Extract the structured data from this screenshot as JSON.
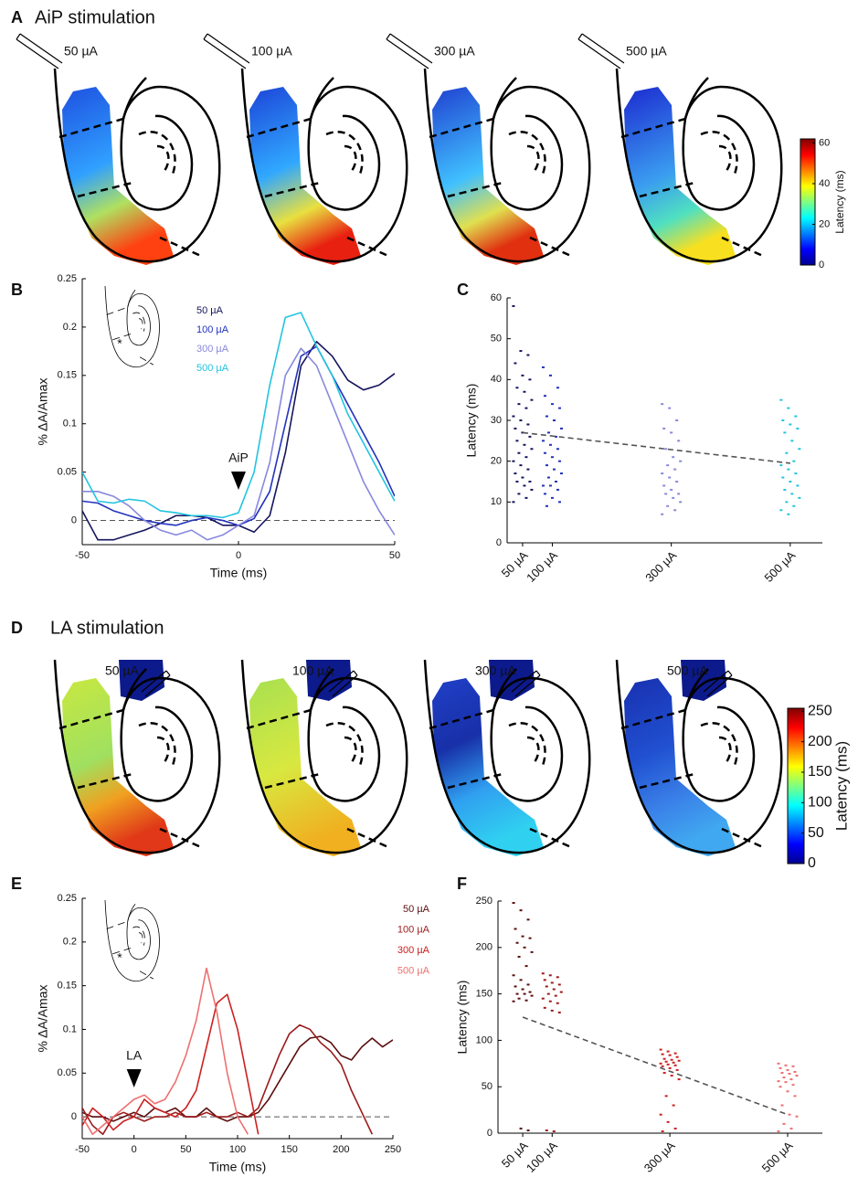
{
  "chart_data": [
    {
      "type": "map",
      "panel": "A",
      "title": "AiP stimulation",
      "labels": [
        "50 µA",
        "100 µA",
        "300 µA",
        "500 µA"
      ],
      "colorbar_label": "Latency (ms)",
      "clim": [
        0,
        62
      ],
      "cticks": [
        0,
        20,
        40,
        60
      ]
    },
    {
      "type": "line",
      "panel": "B",
      "xlabel": "Time (ms)",
      "ylabel": "% ΔA/Amax",
      "xlim": [
        -50,
        50
      ],
      "ylim": [
        -0.025,
        0.25
      ],
      "xticks": [
        -50,
        0,
        50
      ],
      "yticks": [
        0,
        0.05,
        0.1,
        0.15,
        0.2,
        0.25
      ],
      "hline": 0,
      "annotation": {
        "text": "AiP",
        "x": 0
      },
      "inset_mark": "*",
      "x": [
        -50,
        -45,
        -40,
        -35,
        -30,
        -25,
        -20,
        -15,
        -10,
        -5,
        0,
        5,
        10,
        15,
        20,
        25,
        30,
        35,
        40,
        45,
        50
      ],
      "series": [
        {
          "name": "50 µA",
          "color": "#15155e",
          "values": [
            0.01,
            -0.02,
            -0.02,
            -0.015,
            -0.01,
            -0.003,
            0.005,
            0.005,
            0.003,
            -0.005,
            -0.005,
            -0.012,
            0.005,
            0.07,
            0.16,
            0.185,
            0.17,
            0.145,
            0.135,
            0.14,
            0.152
          ]
        },
        {
          "name": "100 µA",
          "color": "#2233bb",
          "values": [
            0.02,
            0.018,
            0.01,
            0.005,
            0.0,
            -0.003,
            -0.005,
            0.0,
            0.003,
            0.0,
            -0.005,
            0.002,
            0.03,
            0.1,
            0.17,
            0.18,
            0.15,
            0.12,
            0.09,
            0.06,
            0.025
          ]
        },
        {
          "name": "300 µA",
          "color": "#8888dd",
          "values": [
            0.03,
            0.03,
            0.025,
            0.015,
            0.0,
            -0.01,
            -0.015,
            -0.01,
            -0.02,
            -0.015,
            -0.005,
            0.005,
            0.06,
            0.15,
            0.178,
            0.16,
            0.12,
            0.08,
            0.04,
            0.01,
            -0.015
          ]
        },
        {
          "name": "500 µA",
          "color": "#22c4e0",
          "values": [
            0.05,
            0.02,
            0.018,
            0.022,
            0.02,
            0.01,
            0.008,
            0.005,
            0.005,
            0.003,
            0.008,
            0.05,
            0.14,
            0.21,
            0.215,
            0.18,
            0.15,
            0.11,
            0.08,
            0.05,
            0.02
          ]
        }
      ]
    },
    {
      "type": "strip",
      "panel": "C",
      "ylabel": "Latency (ms)",
      "xlim": [
        24,
        554
      ],
      "ylim": [
        0,
        60
      ],
      "yticks": [
        0,
        10,
        20,
        30,
        40,
        50,
        60
      ],
      "xticks": [
        {
          "value": 50,
          "label": "50 µA"
        },
        {
          "value": 100,
          "label": "100 µA"
        },
        {
          "value": 300,
          "label": "300 µA"
        },
        {
          "value": 500,
          "label": "500 µA"
        }
      ],
      "series": [
        {
          "x": 50,
          "color": "#15155e",
          "values": [
            58,
            47,
            46,
            44,
            41,
            40,
            38,
            37,
            35,
            34,
            33,
            31,
            30,
            29,
            28,
            27,
            26,
            25,
            24,
            23,
            22,
            21,
            20,
            19,
            18,
            17,
            16,
            15,
            15,
            14,
            13,
            12,
            11,
            10
          ]
        },
        {
          "x": 100,
          "color": "#2233bb",
          "values": [
            43,
            41,
            38,
            36,
            34,
            33,
            31,
            30,
            28,
            27,
            26,
            25,
            24,
            23,
            22,
            21,
            20,
            19,
            18,
            17,
            16,
            15,
            14,
            14,
            13,
            12,
            11,
            10,
            9
          ]
        },
        {
          "x": 300,
          "color": "#8888dd",
          "values": [
            34,
            33,
            30,
            28,
            27,
            25,
            23,
            21,
            20,
            19,
            18,
            17,
            16,
            15,
            14,
            13,
            12,
            12,
            11,
            10,
            9,
            8,
            7
          ]
        },
        {
          "x": 500,
          "color": "#22c4e0",
          "values": [
            35,
            33,
            31,
            30,
            29,
            28,
            27,
            25,
            23,
            22,
            20,
            19,
            18,
            17,
            16,
            15,
            14,
            13,
            12,
            11,
            10,
            9,
            8,
            7
          ]
        }
      ],
      "trend": {
        "x": [
          50,
          500
        ],
        "values": [
          27,
          19.5
        ]
      }
    },
    {
      "type": "map",
      "panel": "D",
      "title": "LA stimulation",
      "labels": [
        "50 µA",
        "100 µA",
        "300 µA",
        "500 µA"
      ],
      "colorbar_label": "Latency (ms)",
      "clim": [
        0,
        255
      ],
      "cticks": [
        0,
        50,
        100,
        150,
        200,
        250
      ]
    },
    {
      "type": "line",
      "panel": "E",
      "xlabel": "Time (ms)",
      "ylabel": "% ΔA/Amax",
      "xlim": [
        -50,
        250
      ],
      "ylim": [
        -0.025,
        0.25
      ],
      "xticks": [
        -50,
        0,
        50,
        100,
        150,
        200,
        250
      ],
      "yticks": [
        0,
        0.05,
        0.1,
        0.15,
        0.2,
        0.25
      ],
      "hline": 0,
      "annotation": {
        "text": "LA",
        "x": 0
      },
      "inset_mark": "*",
      "x": [
        -50,
        -40,
        -30,
        -20,
        -10,
        0,
        10,
        20,
        30,
        40,
        50,
        60,
        70,
        80,
        90,
        100,
        110,
        120,
        130,
        140,
        150,
        160,
        170,
        180,
        190,
        200,
        210,
        220,
        230,
        240,
        250
      ],
      "series": [
        {
          "name": "50 µA",
          "color": "#5c0f0f",
          "values": [
            0.005,
            0.0,
            0.0,
            -0.005,
            0.0,
            0.005,
            0.0,
            0.01,
            0.005,
            0.01,
            0.0,
            0.0,
            0.01,
            0.0,
            -0.005,
            0.0,
            0.0,
            0.005,
            0.02,
            0.04,
            0.06,
            0.08,
            0.09,
            0.092,
            0.085,
            0.07,
            0.065,
            0.08,
            0.09,
            0.08,
            0.088
          ]
        },
        {
          "name": "100 µA",
          "color": "#9b1b1b",
          "values": [
            0.01,
            -0.01,
            -0.02,
            0.0,
            0.005,
            0.0,
            -0.005,
            0.0,
            0.0,
            0.005,
            0.0,
            0.0,
            0.005,
            0.0,
            0.0,
            0.005,
            0.0,
            0.01,
            0.04,
            0.07,
            0.095,
            0.105,
            0.1,
            0.085,
            0.075,
            0.06,
            0.03,
            0.005,
            -0.02,
            null,
            null
          ]
        },
        {
          "name": "300 µA",
          "color": "#cc2020",
          "values": [
            -0.01,
            0.01,
            0.0,
            -0.015,
            -0.005,
            0.0,
            0.02,
            0.01,
            0.005,
            0.0,
            0.01,
            0.03,
            0.08,
            0.13,
            0.14,
            0.1,
            0.04,
            -0.02,
            null,
            null,
            null,
            null,
            null,
            null,
            null,
            null,
            null,
            null,
            null,
            null,
            null
          ]
        },
        {
          "name": "500 µA",
          "color": "#ee7070",
          "values": [
            0.0,
            -0.02,
            -0.01,
            0.0,
            0.01,
            0.02,
            0.025,
            0.015,
            0.02,
            0.04,
            0.07,
            0.11,
            0.17,
            0.12,
            0.05,
            0.0,
            -0.02,
            null,
            null,
            null,
            null,
            null,
            null,
            null,
            null,
            null,
            null,
            null,
            null,
            null,
            null
          ]
        }
      ]
    },
    {
      "type": "strip",
      "panel": "F",
      "ylabel": "Latency (ms)",
      "xlim": [
        8,
        559
      ],
      "ylim": [
        0,
        250
      ],
      "yticks": [
        0,
        50,
        100,
        150,
        200,
        250
      ],
      "xticks": [
        {
          "value": 50,
          "label": "50 µA"
        },
        {
          "value": 100,
          "label": "100 µA"
        },
        {
          "value": 300,
          "label": "300 µA"
        },
        {
          "value": 500,
          "label": "500 µA"
        }
      ],
      "series": [
        {
          "x": 50,
          "color": "#5c0f0f",
          "values": [
            248,
            240,
            230,
            220,
            212,
            210,
            205,
            200,
            195,
            190,
            180,
            170,
            165,
            160,
            158,
            155,
            152,
            150,
            150,
            148,
            145,
            143,
            142,
            5,
            3
          ]
        },
        {
          "x": 100,
          "color": "#9b1b1b",
          "values": [
            172,
            170,
            168,
            165,
            162,
            160,
            158,
            155,
            152,
            150,
            148,
            145,
            142,
            140,
            135,
            132,
            130,
            3,
            2
          ]
        },
        {
          "x": 300,
          "color": "#cc2020",
          "values": [
            90,
            88,
            86,
            85,
            84,
            82,
            80,
            79,
            78,
            77,
            76,
            75,
            74,
            73,
            72,
            70,
            68,
            65,
            62,
            58,
            40,
            30,
            20,
            12,
            5,
            2
          ]
        },
        {
          "x": 500,
          "color": "#ee7070",
          "values": [
            75,
            73,
            72,
            70,
            68,
            66,
            65,
            64,
            62,
            60,
            58,
            56,
            55,
            52,
            50,
            45,
            40,
            30,
            20,
            18,
            10,
            5,
            2
          ]
        }
      ],
      "trend": {
        "x": [
          50,
          500
        ],
        "values": [
          125,
          20
        ]
      }
    }
  ]
}
